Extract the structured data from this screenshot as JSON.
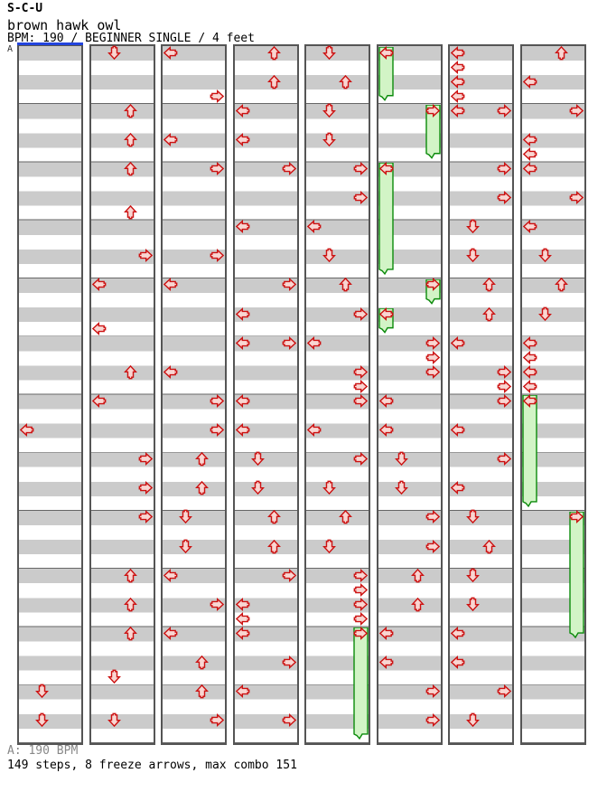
{
  "header": {
    "title": "S-C-U",
    "song": "brown hawk owl",
    "meta": "BPM: 190 / BEGINNER SINGLE / 4 feet"
  },
  "footer": {
    "bpm_line": "A: 190 BPM",
    "stats_line": "149 steps, 8 freeze arrows, max combo 151"
  },
  "colors": {
    "stripe_gray": "#cbcbcb",
    "measure_line": "#666666",
    "panel_border": "#555555",
    "arrow_stroke": "#cc1111",
    "arrow_fill": "#f9d6d2",
    "freeze_fill": "#d2f4c6",
    "freeze_stroke": "#0a8a0a",
    "marker_blue": "#2244dd",
    "footer_gray": "#888888"
  },
  "chart": {
    "marker_label": "A",
    "lanes": [
      "left",
      "down",
      "up",
      "right"
    ],
    "rows_per_panel": 48,
    "rows_per_measure": 4,
    "panels": [
      {
        "arrows": [
          [
            26,
            "L"
          ],
          [
            44,
            "D"
          ],
          [
            46,
            "D"
          ]
        ]
      },
      {
        "arrows": [
          [
            0,
            "D"
          ],
          [
            4,
            "U"
          ],
          [
            6,
            "U"
          ],
          [
            8,
            "U"
          ],
          [
            11,
            "U"
          ],
          [
            14,
            "R"
          ],
          [
            16,
            "L"
          ],
          [
            19,
            "L"
          ],
          [
            22,
            "U"
          ],
          [
            24,
            "L"
          ],
          [
            28,
            "R"
          ],
          [
            30,
            "R"
          ],
          [
            32,
            "R"
          ],
          [
            36,
            "U"
          ],
          [
            38,
            "U"
          ],
          [
            40,
            "U"
          ],
          [
            43,
            "D"
          ],
          [
            46,
            "D"
          ]
        ]
      },
      {
        "arrows": [
          [
            0,
            "L"
          ],
          [
            3,
            "R"
          ],
          [
            6,
            "L"
          ],
          [
            8,
            "R"
          ],
          [
            14,
            "R"
          ],
          [
            16,
            "L"
          ],
          [
            22,
            "L"
          ],
          [
            24,
            "R"
          ],
          [
            26,
            "R"
          ],
          [
            28,
            "U"
          ],
          [
            30,
            "U"
          ],
          [
            32,
            "D"
          ],
          [
            34,
            "D"
          ],
          [
            36,
            "L"
          ],
          [
            38,
            "R"
          ],
          [
            40,
            "L"
          ],
          [
            42,
            "U"
          ],
          [
            44,
            "U"
          ],
          [
            46,
            "R"
          ]
        ]
      },
      {
        "arrows": [
          [
            0,
            "U"
          ],
          [
            2,
            "U"
          ],
          [
            4,
            "L"
          ],
          [
            6,
            "L"
          ],
          [
            8,
            "R"
          ],
          [
            12,
            "L"
          ],
          [
            16,
            "R"
          ],
          [
            18,
            "L"
          ],
          [
            20,
            "L"
          ],
          [
            20,
            "R"
          ],
          [
            24,
            "L"
          ],
          [
            26,
            "L"
          ],
          [
            28,
            "D"
          ],
          [
            30,
            "D"
          ],
          [
            32,
            "U"
          ],
          [
            34,
            "U"
          ],
          [
            36,
            "R"
          ],
          [
            38,
            "L"
          ],
          [
            39,
            "L"
          ],
          [
            40,
            "L"
          ],
          [
            42,
            "R"
          ],
          [
            44,
            "L"
          ],
          [
            46,
            "R"
          ]
        ]
      },
      {
        "arrows": [
          [
            0,
            "D"
          ],
          [
            2,
            "U"
          ],
          [
            4,
            "D"
          ],
          [
            6,
            "D"
          ],
          [
            8,
            "R"
          ],
          [
            10,
            "R"
          ],
          [
            12,
            "L"
          ],
          [
            14,
            "D"
          ],
          [
            16,
            "U"
          ],
          [
            18,
            "R"
          ],
          [
            20,
            "L"
          ],
          [
            22,
            "R"
          ],
          [
            23,
            "R"
          ],
          [
            24,
            "R"
          ],
          [
            26,
            "L"
          ],
          [
            28,
            "R"
          ],
          [
            30,
            "D"
          ],
          [
            32,
            "U"
          ],
          [
            34,
            "D"
          ],
          [
            36,
            "R"
          ],
          [
            37,
            "R"
          ],
          [
            38,
            "R"
          ],
          [
            39,
            "R"
          ],
          [
            40,
            "R",
            47
          ]
        ]
      },
      {
        "arrows": [
          [
            0,
            "L",
            3
          ],
          [
            4,
            "R",
            7
          ],
          [
            8,
            "L",
            15
          ],
          [
            16,
            "R",
            17
          ],
          [
            18,
            "L",
            19
          ],
          [
            20,
            "R"
          ],
          [
            21,
            "R"
          ],
          [
            22,
            "R"
          ],
          [
            24,
            "L"
          ],
          [
            26,
            "L"
          ],
          [
            28,
            "D"
          ],
          [
            30,
            "D"
          ],
          [
            32,
            "R"
          ],
          [
            34,
            "R"
          ],
          [
            36,
            "U"
          ],
          [
            38,
            "U"
          ],
          [
            40,
            "L"
          ],
          [
            42,
            "L"
          ],
          [
            44,
            "R"
          ],
          [
            46,
            "R"
          ]
        ]
      },
      {
        "arrows": [
          [
            0,
            "L"
          ],
          [
            1,
            "L"
          ],
          [
            2,
            "L"
          ],
          [
            3,
            "L"
          ],
          [
            4,
            "L"
          ],
          [
            4,
            "R"
          ],
          [
            8,
            "R"
          ],
          [
            10,
            "R"
          ],
          [
            12,
            "D"
          ],
          [
            14,
            "D"
          ],
          [
            16,
            "U"
          ],
          [
            18,
            "U"
          ],
          [
            20,
            "L"
          ],
          [
            22,
            "R"
          ],
          [
            23,
            "R"
          ],
          [
            24,
            "R"
          ],
          [
            26,
            "L"
          ],
          [
            28,
            "R"
          ],
          [
            30,
            "L"
          ],
          [
            32,
            "D"
          ],
          [
            34,
            "U"
          ],
          [
            36,
            "D"
          ],
          [
            38,
            "D"
          ],
          [
            40,
            "L"
          ],
          [
            42,
            "L"
          ],
          [
            44,
            "R"
          ],
          [
            46,
            "D"
          ]
        ]
      },
      {
        "arrows": [
          [
            0,
            "U"
          ],
          [
            2,
            "L"
          ],
          [
            4,
            "R"
          ],
          [
            6,
            "L"
          ],
          [
            7,
            "L"
          ],
          [
            8,
            "L"
          ],
          [
            10,
            "R"
          ],
          [
            12,
            "L"
          ],
          [
            14,
            "D"
          ],
          [
            16,
            "U"
          ],
          [
            18,
            "D"
          ],
          [
            20,
            "L"
          ],
          [
            21,
            "L"
          ],
          [
            22,
            "L"
          ],
          [
            23,
            "L"
          ],
          [
            24,
            "L",
            31
          ],
          [
            32,
            "R",
            40
          ]
        ]
      }
    ]
  }
}
